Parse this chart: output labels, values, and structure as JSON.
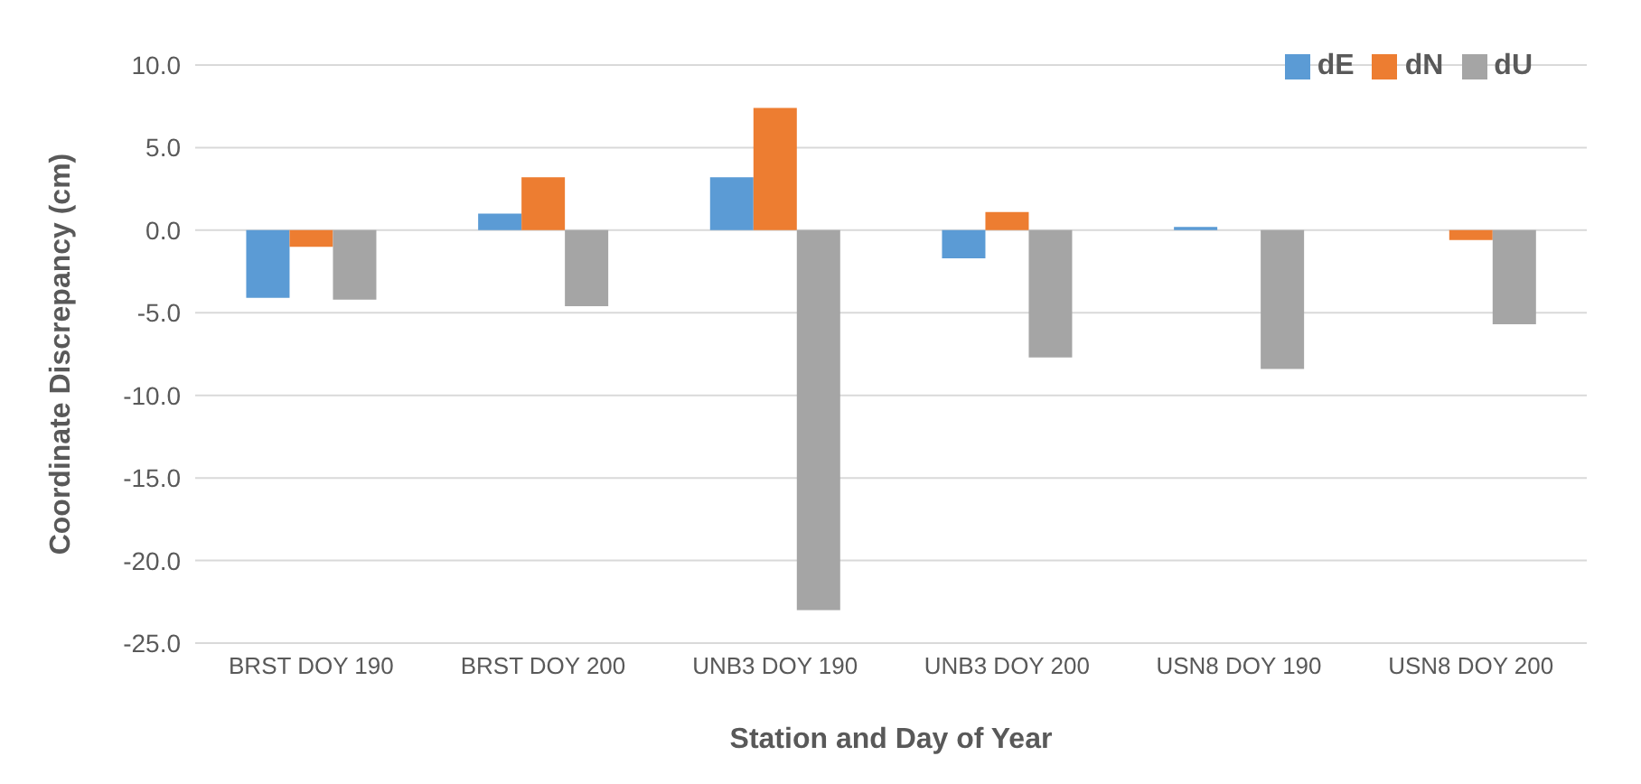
{
  "chart_data": {
    "type": "bar",
    "xlabel": "Station and Day of Year",
    "ylabel": "Coordinate Discrepancy (cm)",
    "categories": [
      "BRST DOY 190",
      "BRST DOY 200",
      "UNB3 DOY 190",
      "UNB3 DOY 200",
      "USN8 DOY 190",
      "USN8 DOY 200"
    ],
    "series": [
      {
        "name": "dE",
        "color": "#5b9bd5",
        "values": [
          -4.1,
          1.0,
          3.2,
          -1.7,
          0.2,
          0.0
        ]
      },
      {
        "name": "dN",
        "color": "#ed7d31",
        "values": [
          -1.0,
          3.2,
          7.4,
          1.1,
          0.0,
          -0.6
        ]
      },
      {
        "name": "dU",
        "color": "#a5a5a5",
        "values": [
          -4.2,
          -4.6,
          -23.0,
          -7.7,
          -8.4,
          -5.7
        ]
      }
    ],
    "ylim": [
      -25,
      10
    ],
    "yticks": [
      {
        "value": -25,
        "label": "-25.0"
      },
      {
        "value": -20,
        "label": "-20.0"
      },
      {
        "value": -15,
        "label": "-15.0"
      },
      {
        "value": -10,
        "label": "-10.0"
      },
      {
        "value": -5,
        "label": "-5.0"
      },
      {
        "value": 0,
        "label": "0.0"
      },
      {
        "value": 5,
        "label": "5.0"
      },
      {
        "value": 10,
        "label": "10.0"
      }
    ],
    "grid": "y",
    "legend": "top right"
  }
}
